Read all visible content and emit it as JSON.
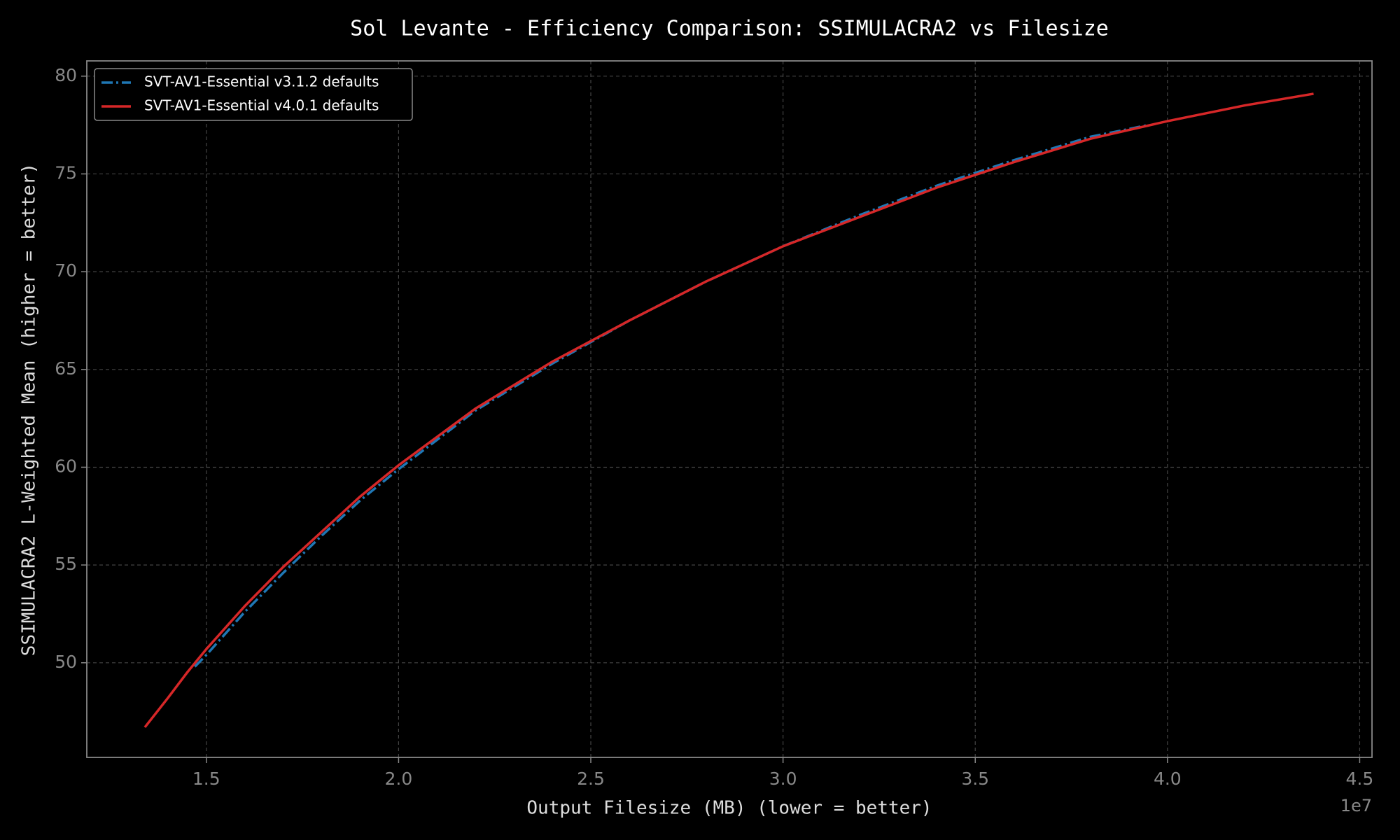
{
  "chart_data": {
    "type": "line",
    "title": "Sol Levante - Efficiency Comparison: SSIMULACRA2 vs Filesize",
    "x_label": "Output Filesize (MB) (lower = better)",
    "y_label": "SSIMULACRA2 L-Weighted Mean (higher = better)",
    "x_offset_label": "1e7",
    "xlim": [
      11890000,
      45320000
    ],
    "ylim": [
      45.16,
      80.78
    ],
    "xticks": [
      {
        "value": 15000000,
        "label": "1.5"
      },
      {
        "value": 20000000,
        "label": "2.0"
      },
      {
        "value": 25000000,
        "label": "2.5"
      },
      {
        "value": 30000000,
        "label": "3.0"
      },
      {
        "value": 35000000,
        "label": "3.5"
      },
      {
        "value": 40000000,
        "label": "4.0"
      },
      {
        "value": 45000000,
        "label": "4.5"
      }
    ],
    "yticks": [
      50,
      55,
      60,
      65,
      70,
      75,
      80
    ],
    "grid": true,
    "legend": "upper left",
    "series": [
      {
        "name": "SVT-AV1-Essential v3.1.2 defaults",
        "color": "#1f77b4",
        "dash": "dashdot",
        "x": [
          14700000,
          15000000,
          16000000,
          17000000,
          18000000,
          19000000,
          20000000,
          22000000,
          24000000,
          26000000,
          28000000,
          30000000,
          32000000,
          34000000,
          36000000,
          38000000,
          39500000
        ],
        "values": [
          49.8,
          50.4,
          52.6,
          54.6,
          56.5,
          58.3,
          59.9,
          62.9,
          65.3,
          67.5,
          69.5,
          71.3,
          72.9,
          74.4,
          75.7,
          76.9,
          77.5
        ]
      },
      {
        "name": "SVT-AV1-Essential v4.0.1 defaults",
        "color": "#d62728",
        "dash": "solid",
        "x": [
          13400000,
          14000000,
          14500000,
          15000000,
          16000000,
          17000000,
          18000000,
          19000000,
          20000000,
          22000000,
          24000000,
          26000000,
          28000000,
          30000000,
          32000000,
          34000000,
          36000000,
          38000000,
          40000000,
          42000000,
          43800000
        ],
        "values": [
          46.7,
          48.2,
          49.5,
          50.7,
          52.9,
          54.9,
          56.7,
          58.5,
          60.1,
          63.0,
          65.4,
          67.5,
          69.5,
          71.3,
          72.8,
          74.3,
          75.6,
          76.8,
          77.7,
          78.5,
          79.1
        ]
      }
    ]
  }
}
